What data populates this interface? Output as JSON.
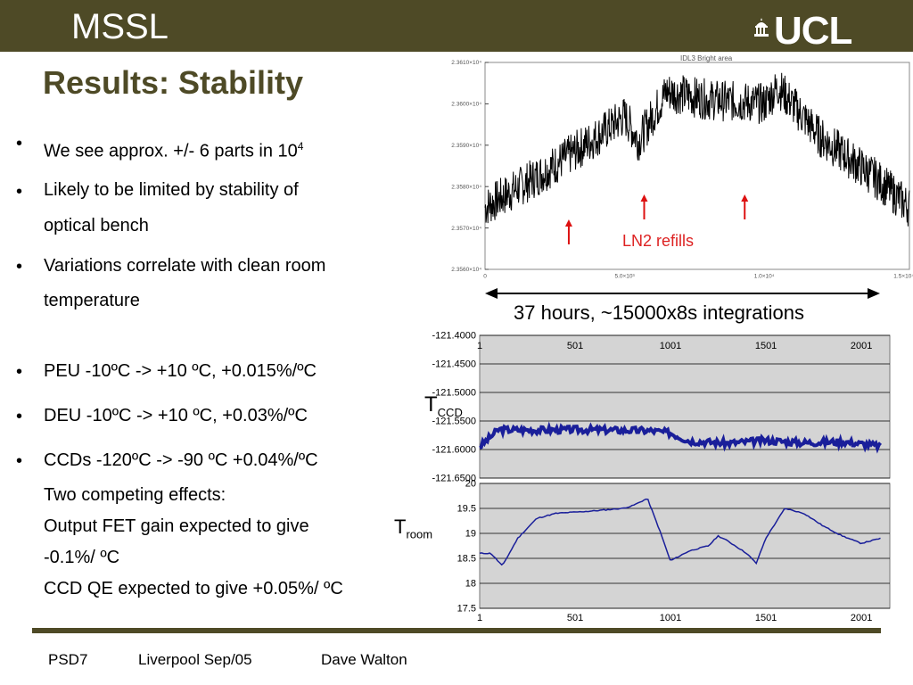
{
  "header": {
    "left": "MSSL",
    "right": "UCL"
  },
  "title": "Results: Stability",
  "bullets": [
    {
      "text": "We see approx. +/- 6 parts in 10",
      "sup": "4"
    },
    {
      "text": "Likely to be limited by stability of",
      "text2": "optical bench"
    },
    {
      "text": "Variations correlate with clean room",
      "text2": "temperature"
    },
    {
      "text": "PEU -10ºC -> +10 ºC, +0.015%/ºC"
    },
    {
      "text": "DEU -10ºC -> +10 ºC, +0.03%/ºC"
    },
    {
      "text": "CCDs -120ºC -> -90 ºC +0.04%/ºC"
    }
  ],
  "effects": [
    "Two competing effects:",
    "Output FET gain expected to give",
    "-0.1%/ ºC",
    "CCD QE expected to give +0.05%/ ºC"
  ],
  "annotations": {
    "refills": "LN2 refills",
    "span": "37 hours, ~15000x8s integrations",
    "tccd_main": "T",
    "tccd_sub": "CCD",
    "troom_main": "T",
    "troom_sub": "room"
  },
  "footer": {
    "event": "PSD7",
    "place": "Liverpool Sep/05",
    "author": "Dave Walton"
  },
  "colors": {
    "brand": "#4e4a26",
    "arrow": "#dd1111",
    "trace_blue": "#1a1f9a"
  },
  "chart_data": [
    {
      "type": "line",
      "title": "IDL3 Bright area",
      "x": [
        0,
        2000,
        4000,
        5000,
        5500,
        6500,
        8000,
        10000,
        10500,
        12000,
        14000,
        15200
      ],
      "y": [
        23575,
        23583,
        23592,
        23597,
        23591,
        23603,
        23601,
        23600,
        23604,
        23592,
        23582,
        23575
      ],
      "xlim": [
        0,
        15200
      ],
      "ylim": [
        23560,
        23610
      ],
      "ytick_labels": [
        "2.3560×10⁴",
        "2.3570×10⁴",
        "2.3580×10⁴",
        "2.3590×10⁴",
        "2.3600×10⁴",
        "2.3610×10⁴"
      ],
      "yticks": [
        23560,
        23570,
        23580,
        23590,
        23600,
        23610
      ],
      "xtick_labels": [
        "0",
        "5.0×10³",
        "1.0×10⁴",
        "1.5×10⁴"
      ],
      "xticks": [
        0,
        5000,
        10000,
        15000
      ],
      "refill_x": [
        3000,
        5700,
        9300
      ],
      "grid": false
    },
    {
      "type": "line",
      "x": [
        1,
        100,
        300,
        500,
        700,
        900,
        1000,
        1100,
        1300,
        1500,
        1700,
        1900,
        2101
      ],
      "y": [
        -121.595,
        -121.565,
        -121.566,
        -121.565,
        -121.566,
        -121.567,
        -121.571,
        -121.585,
        -121.589,
        -121.584,
        -121.588,
        -121.586,
        -121.594
      ],
      "xlim": [
        1,
        2150
      ],
      "ylim": [
        -121.65,
        -121.4
      ],
      "ytick_labels": [
        "-121.4000",
        "-121.4500",
        "-121.5000",
        "-121.5500",
        "-121.6000",
        "-121.6500"
      ],
      "yticks": [
        -121.4,
        -121.45,
        -121.5,
        -121.55,
        -121.6,
        -121.65
      ],
      "xtick_labels": [
        "1",
        "501",
        "1001",
        "1501",
        "2001"
      ],
      "xticks": [
        1,
        501,
        1001,
        1501,
        2001
      ],
      "grid": true
    },
    {
      "type": "line",
      "x": [
        1,
        60,
        120,
        200,
        300,
        400,
        600,
        750,
        800,
        880,
        900,
        950,
        1000,
        1100,
        1200,
        1250,
        1300,
        1400,
        1450,
        1500,
        1600,
        1700,
        1800,
        1900,
        2000,
        2101
      ],
      "y": [
        18.6,
        18.6,
        18.35,
        18.9,
        19.3,
        19.4,
        19.45,
        19.5,
        19.55,
        19.7,
        19.5,
        19.0,
        18.45,
        18.65,
        18.75,
        18.95,
        18.85,
        18.6,
        18.4,
        18.9,
        19.5,
        19.4,
        19.15,
        18.95,
        18.8,
        18.9
      ],
      "xlim": [
        1,
        2150
      ],
      "ylim": [
        17.5,
        20
      ],
      "ytick_labels": [
        "17.5",
        "18",
        "18.5",
        "19",
        "19.5",
        "20"
      ],
      "yticks": [
        17.5,
        18,
        18.5,
        19,
        19.5,
        20
      ],
      "xtick_labels": [
        "1",
        "501",
        "1001",
        "1501",
        "2001"
      ],
      "xticks": [
        1,
        501,
        1001,
        1501,
        2001
      ],
      "grid": true
    }
  ]
}
